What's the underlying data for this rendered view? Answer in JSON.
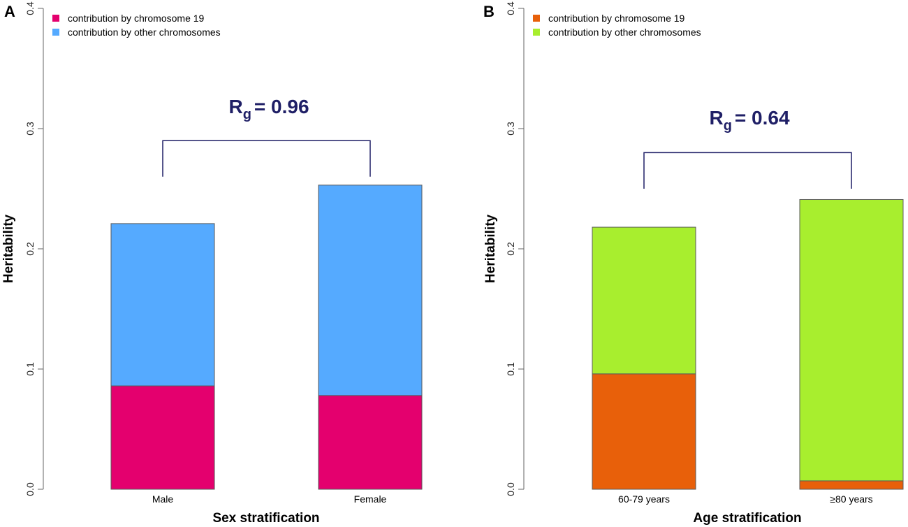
{
  "chart_data": [
    {
      "type": "bar",
      "stacked": true,
      "panel": "A",
      "title": "",
      "xlabel": "Sex stratification",
      "ylabel": "Heritability",
      "ylim": [
        0,
        0.4
      ],
      "yticks": [
        "0.0",
        "0.1",
        "0.2",
        "0.3",
        "0.4"
      ],
      "categories": [
        "Male",
        "Female"
      ],
      "series": [
        {
          "name": "contribution by chromosome 19",
          "values": [
            0.086,
            0.078
          ],
          "color": "#e4006e"
        },
        {
          "name": "contribution by other chromosomes",
          "values": [
            0.135,
            0.175
          ],
          "color": "#55aaff"
        }
      ],
      "legend_position": "top-left",
      "annotation": {
        "symbol": "R",
        "subscript": "g",
        "text": "= 0.96",
        "bracket_top": 0.29,
        "bracket_bottom": 0.26
      }
    },
    {
      "type": "bar",
      "stacked": true,
      "panel": "B",
      "title": "",
      "xlabel": "Age stratification",
      "ylabel": "Heritability",
      "ylim": [
        0,
        0.4
      ],
      "yticks": [
        "0.0",
        "0.1",
        "0.2",
        "0.3",
        "0.4"
      ],
      "categories": [
        "60-79 years",
        "≥80 years"
      ],
      "series": [
        {
          "name": "contribution by chromosome 19",
          "values": [
            0.096,
            0.007
          ],
          "color": "#e8600a"
        },
        {
          "name": "contribution by other chromosomes",
          "values": [
            0.122,
            0.234
          ],
          "color": "#a8ee2e"
        }
      ],
      "legend_position": "top-left",
      "annotation": {
        "symbol": "R",
        "subscript": "g",
        "text": "= 0.64",
        "bracket_top": 0.28,
        "bracket_bottom": 0.25
      }
    }
  ]
}
